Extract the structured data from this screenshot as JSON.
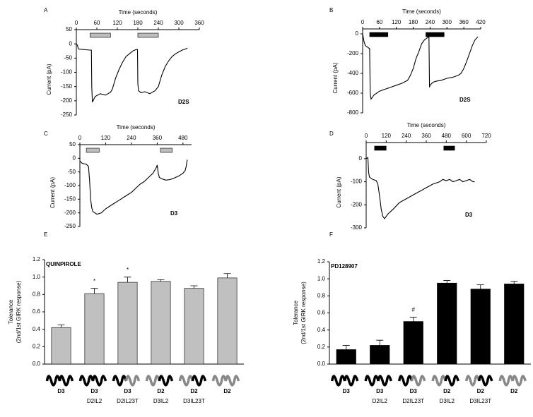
{
  "chart_data": [
    {
      "panel": "A",
      "type": "line",
      "xlabel": "Time (seconds)",
      "ylabel": "Current (pA)",
      "annotation": "D2S",
      "xlim": [
        0,
        360
      ],
      "xticks": [
        0,
        60,
        120,
        180,
        240,
        300,
        360
      ],
      "ylim": [
        -250,
        50
      ],
      "yticks": [
        50,
        0,
        -50,
        -100,
        -150,
        -200,
        -250
      ],
      "application_bars": [
        [
          40,
          100
        ],
        [
          180,
          240
        ]
      ],
      "bar_color": "#bdbdbd",
      "color": "#000000",
      "x": [
        0,
        3,
        6,
        20,
        40,
        44,
        45,
        47,
        55,
        70,
        85,
        100,
        105,
        115,
        125,
        135,
        145,
        155,
        165,
        175,
        179,
        180,
        182,
        190,
        200,
        215,
        230,
        240,
        250,
        260,
        270,
        280,
        290,
        300,
        310,
        320,
        325
      ],
      "values": [
        0,
        -5,
        -18,
        -20,
        -22,
        -22,
        -150,
        -205,
        -185,
        -175,
        -180,
        -170,
        -160,
        -120,
        -90,
        -65,
        -45,
        -35,
        -25,
        -20,
        -20,
        -140,
        -165,
        -172,
        -168,
        -175,
        -165,
        -150,
        -110,
        -80,
        -60,
        -45,
        -35,
        -28,
        -22,
        -18,
        -15
      ]
    },
    {
      "panel": "B",
      "type": "line",
      "xlabel": "Time (seconds)",
      "ylabel": "Current (pA)",
      "annotation": "D2S",
      "xlim": [
        0,
        420
      ],
      "xticks": [
        0,
        60,
        120,
        180,
        240,
        300,
        360,
        420
      ],
      "ylim": [
        -800,
        50
      ],
      "yticks": [
        0,
        -200,
        -400,
        -600,
        -800
      ],
      "application_bars": [
        [
          25,
          90
        ],
        [
          225,
          290
        ]
      ],
      "bar_color": "#000000",
      "color": "#000000",
      "x": [
        0,
        5,
        10,
        20,
        25,
        27,
        30,
        40,
        60,
        80,
        100,
        120,
        140,
        160,
        170,
        180,
        190,
        200,
        210,
        220,
        230,
        236,
        238,
        240,
        250,
        260,
        280,
        300,
        320,
        340,
        350,
        360,
        370,
        380,
        390,
        400,
        410
      ],
      "values": [
        0,
        -80,
        -120,
        -140,
        -150,
        -600,
        -660,
        -620,
        -580,
        -560,
        -540,
        -520,
        -500,
        -470,
        -420,
        -350,
        -250,
        -180,
        -100,
        -60,
        -40,
        -30,
        -540,
        -520,
        -490,
        -480,
        -470,
        -450,
        -440,
        -420,
        -400,
        -350,
        -280,
        -200,
        -120,
        -60,
        -30
      ]
    },
    {
      "panel": "C",
      "type": "line",
      "xlabel": "Time (seconds)",
      "ylabel": "Current (pA)",
      "annotation": "D3",
      "xlim": [
        0,
        520
      ],
      "xticks": [
        0,
        120,
        240,
        360,
        480
      ],
      "ylim": [
        -250,
        50
      ],
      "yticks": [
        50,
        0,
        -50,
        -100,
        -150,
        -200,
        -250
      ],
      "application_bars": [
        [
          30,
          90
        ],
        [
          375,
          430
        ]
      ],
      "bar_color": "#bdbdbd",
      "color": "#000000",
      "x": [
        0,
        10,
        20,
        30,
        40,
        45,
        50,
        55,
        60,
        70,
        80,
        100,
        120,
        140,
        160,
        180,
        200,
        220,
        240,
        260,
        280,
        300,
        320,
        340,
        355,
        360,
        365,
        370,
        380,
        400,
        420,
        440,
        460,
        480,
        490,
        495,
        500
      ],
      "values": [
        -10,
        -18,
        -20,
        -22,
        -30,
        -80,
        -150,
        -180,
        -195,
        -200,
        -205,
        -200,
        -185,
        -175,
        -165,
        -155,
        -145,
        -135,
        -125,
        -110,
        -95,
        -85,
        -70,
        -55,
        -35,
        -25,
        -55,
        -70,
        -75,
        -80,
        -78,
        -72,
        -65,
        -55,
        -45,
        -30,
        -5
      ]
    },
    {
      "panel": "D",
      "type": "line",
      "xlabel": "Time (seconds)",
      "ylabel": "Current (pA)",
      "annotation": "D3",
      "xlim": [
        0,
        720
      ],
      "xticks": [
        0,
        120,
        240,
        360,
        480,
        600,
        720
      ],
      "ylim": [
        -300,
        70
      ],
      "yticks": [
        0,
        -100,
        -200,
        -300
      ],
      "application_bars": [
        [
          50,
          120
        ],
        [
          465,
          530
        ]
      ],
      "bar_color": "#000000",
      "color": "#000000",
      "x": [
        0,
        10,
        15,
        20,
        40,
        60,
        70,
        80,
        90,
        100,
        110,
        130,
        160,
        200,
        250,
        300,
        350,
        400,
        440,
        460,
        480,
        500,
        520,
        540,
        560,
        580,
        600,
        620,
        640,
        650
      ],
      "values": [
        0,
        5,
        -60,
        -80,
        -90,
        -95,
        -110,
        -160,
        -220,
        -250,
        -260,
        -240,
        -220,
        -190,
        -170,
        -150,
        -130,
        -110,
        -100,
        -90,
        -95,
        -90,
        -100,
        -95,
        -90,
        -100,
        -95,
        -90,
        -100,
        -100
      ]
    },
    {
      "panel": "E",
      "type": "bar",
      "title": "QUINPIROLE",
      "ylabel": [
        "Tolerance",
        "(2nd/1st GIRK response)"
      ],
      "ylim": [
        0,
        1.2
      ],
      "yticks": [
        {
          "value": 0,
          "label": "0.0"
        },
        0.2,
        0.4,
        0.6,
        0.8,
        {
          "value": 1,
          "label": "1.0"
        },
        1.2
      ],
      "categories": [
        "D3",
        "D3",
        "D3",
        "D2",
        "D2",
        "D2"
      ],
      "category_sublabels": [
        null,
        "D2IL2",
        "D2IL23T",
        "D3IL2",
        "D3IL23T",
        null
      ],
      "values": [
        0.42,
        0.81,
        0.94,
        0.95,
        0.87,
        0.99
      ],
      "errors": [
        0.03,
        0.06,
        0.06,
        0.02,
        0.03,
        0.05
      ],
      "annotations": [
        null,
        "*",
        "*",
        null,
        null,
        null
      ],
      "color": "#c0c0c0"
    },
    {
      "panel": "F",
      "type": "bar",
      "title": "PD128907",
      "ylabel": [
        "Tolerance",
        "(2nd/1st GIRK response)"
      ],
      "ylim": [
        0,
        1.2
      ],
      "yticks": [
        {
          "value": 0,
          "label": "0.0"
        },
        0.2,
        0.4,
        0.6,
        0.8,
        {
          "value": 1,
          "label": "1.0"
        },
        1.2
      ],
      "categories": [
        "D3",
        "D3",
        "D3",
        "D2",
        "D2",
        "D2"
      ],
      "category_sublabels": [
        null,
        "D2IL2",
        "D2IL23T",
        "D3IL2",
        "D3IL23T",
        null
      ],
      "values": [
        0.17,
        0.22,
        0.5,
        0.95,
        0.88,
        0.94
      ],
      "errors": [
        0.05,
        0.06,
        0.05,
        0.03,
        0.05,
        0.03
      ],
      "annotations": [
        null,
        null,
        "#",
        null,
        null,
        null
      ],
      "color": "#000000"
    }
  ]
}
